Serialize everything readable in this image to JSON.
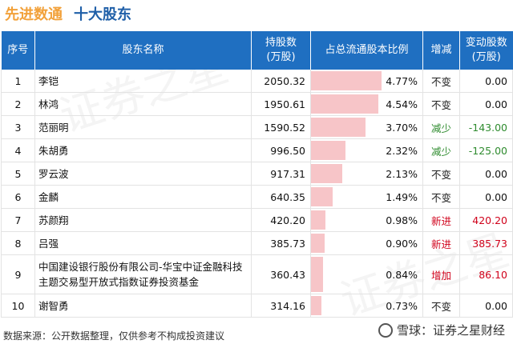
{
  "header": {
    "brand": "先进数通",
    "title": "十大股东"
  },
  "table": {
    "columns": [
      "序号",
      "股东名称",
      "持股数\n(万股)",
      "占总流通股本比例",
      "增减",
      "变动股数\n(万股)"
    ],
    "rows": [
      {
        "no": "1",
        "name": "李铠",
        "shares": "2050.32",
        "ratio": "4.77%",
        "ratio_value": 4.77,
        "change": "不变",
        "change_type": "same",
        "delta": "0.00"
      },
      {
        "no": "2",
        "name": "林鸿",
        "shares": "1950.61",
        "ratio": "4.54%",
        "ratio_value": 4.54,
        "change": "不变",
        "change_type": "same",
        "delta": "0.00"
      },
      {
        "no": "3",
        "name": "范丽明",
        "shares": "1590.52",
        "ratio": "3.70%",
        "ratio_value": 3.7,
        "change": "减少",
        "change_type": "down",
        "delta": "-143.00"
      },
      {
        "no": "4",
        "name": "朱胡勇",
        "shares": "996.50",
        "ratio": "2.32%",
        "ratio_value": 2.32,
        "change": "减少",
        "change_type": "down",
        "delta": "-125.00"
      },
      {
        "no": "5",
        "name": "罗云波",
        "shares": "917.31",
        "ratio": "2.13%",
        "ratio_value": 2.13,
        "change": "不变",
        "change_type": "same",
        "delta": "0.00"
      },
      {
        "no": "6",
        "name": "金麟",
        "shares": "640.35",
        "ratio": "1.49%",
        "ratio_value": 1.49,
        "change": "不变",
        "change_type": "same",
        "delta": "0.00"
      },
      {
        "no": "7",
        "name": "苏颜翔",
        "shares": "420.20",
        "ratio": "0.98%",
        "ratio_value": 0.98,
        "change": "新进",
        "change_type": "up",
        "delta": "420.20"
      },
      {
        "no": "8",
        "name": "吕强",
        "shares": "385.73",
        "ratio": "0.90%",
        "ratio_value": 0.9,
        "change": "新进",
        "change_type": "up",
        "delta": "385.73"
      },
      {
        "no": "9",
        "name": "中国建设银行股份有限公司-华宝中证金融科技主题交易型开放式指数证券投资基金",
        "shares": "360.43",
        "ratio": "0.84%",
        "ratio_value": 0.84,
        "change": "增加",
        "change_type": "up",
        "delta": "86.10"
      },
      {
        "no": "10",
        "name": "谢智勇",
        "shares": "314.16",
        "ratio": "0.73%",
        "ratio_value": 0.73,
        "change": "不变",
        "change_type": "same",
        "delta": "0.00"
      }
    ]
  },
  "footer": {
    "source": "数据来源：公开数据整理，仅供参考不构成投资建议"
  },
  "logo": {
    "text": "雪球：证券之星财经"
  },
  "watermark": {
    "text": "证券之星"
  },
  "colors": {
    "header_bg": "#1f6fc1",
    "brand": "#f2a13a",
    "title": "#1f5fa8",
    "bar": "#f7c5c8",
    "down": "#2e8b2e",
    "up": "#d0021b"
  }
}
